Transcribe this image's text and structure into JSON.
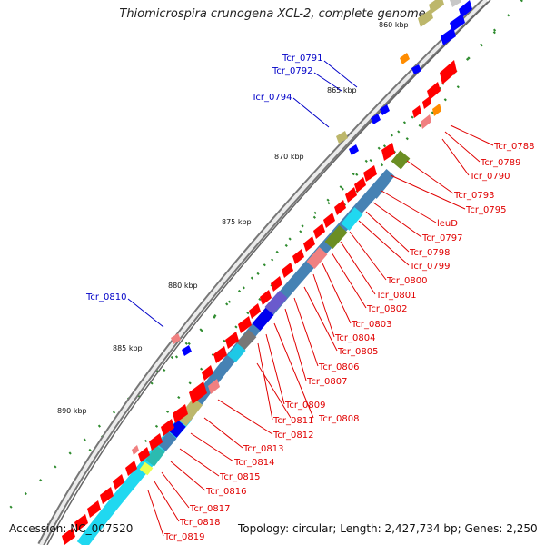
{
  "title": "Thiomicrospira crunogena XCL-2, complete genome",
  "footer": {
    "accession": "Accession: NC_007520",
    "summary": "Topology: circular; Length: 2,427,734 bp; Genes: 2,250"
  },
  "kbp_ticks": [
    "860 kbp",
    "865 kbp",
    "870 kbp",
    "875 kbp",
    "880 kbp",
    "885 kbp",
    "890 kbp"
  ],
  "left_labels": [
    "Tcr_0791",
    "Tcr_0792",
    "Tcr_0794",
    "Tcr_0810"
  ],
  "right_labels": [
    "Tcr_0788",
    "Tcr_0789",
    "Tcr_0790",
    "Tcr_0793",
    "Tcr_0795",
    "leuD",
    "Tcr_0797",
    "Tcr_0798",
    "Tcr_0799",
    "Tcr_0800",
    "Tcr_0801",
    "Tcr_0802",
    "Tcr_0803",
    "Tcr_0804",
    "Tcr_0805",
    "Tcr_0806",
    "Tcr_0807",
    "Tcr_0809",
    "Tcr_0811",
    "Tcr_0808",
    "Tcr_0812",
    "Tcr_0813",
    "Tcr_0814",
    "Tcr_0815",
    "Tcr_0816",
    "Tcr_0817",
    "Tcr_0818",
    "Tcr_0819"
  ],
  "colors": {
    "gene_forward": "#ff0000",
    "gene_reverse": "#0000ff",
    "label_right": "#e00000",
    "label_left": "#0000c8",
    "tick_dot": "#2e8b2e",
    "backbone": "#8a8a8a"
  }
}
